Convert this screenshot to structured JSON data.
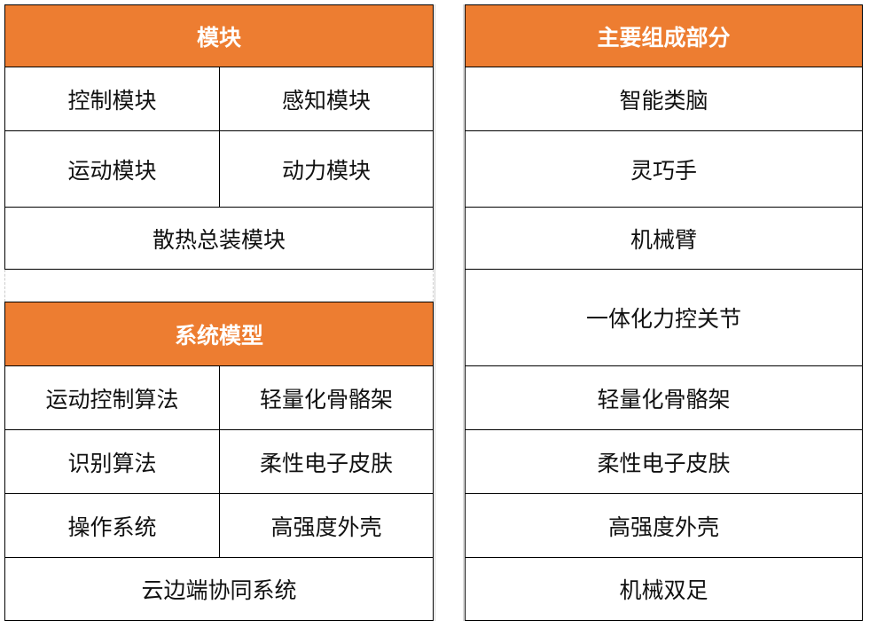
{
  "colors": {
    "header_bg": "#ED7D31",
    "header_text": "#FFFFFF"
  },
  "modules": {
    "header": "模块",
    "rows": [
      [
        "控制模块",
        "感知模块"
      ],
      [
        "运动模块",
        "动力模块"
      ],
      [
        "散热总装模块"
      ]
    ]
  },
  "system_models": {
    "header": "系统模型",
    "rows": [
      [
        "运动控制算法",
        "轻量化骨骼架"
      ],
      [
        "识别算法",
        "柔性电子皮肤"
      ],
      [
        "操作系统",
        "高强度外壳"
      ],
      [
        "云边端协同系统"
      ]
    ]
  },
  "components": {
    "header": "主要组成部分",
    "items": [
      "智能类脑",
      "灵巧手",
      "机械臂",
      "一体化力控关节",
      "轻量化骨骼架",
      "柔性电子皮肤",
      "高强度外壳",
      "机械双足"
    ]
  }
}
